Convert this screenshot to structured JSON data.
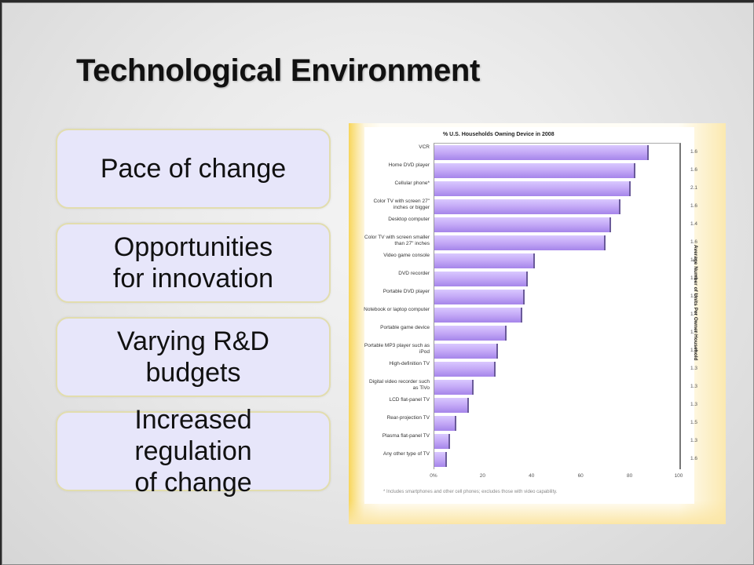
{
  "slide": {
    "title": "Technological Environment",
    "boxes": [
      {
        "label": "Pace of change"
      },
      {
        "label": "Opportunities\nfor innovation"
      },
      {
        "label": "Varying R&D\nbudgets"
      },
      {
        "label": "Increased\nregulation\nof change"
      }
    ]
  },
  "chart": {
    "title": "% U.S. Households Owning Device in 2008",
    "right_axis_label": "Average Number of Units Per Owner Household",
    "footnote": "* Includes smartphones and other cell phones; excludes those with video capability.",
    "x_ticks": [
      "0%",
      "20",
      "40",
      "60",
      "80",
      "100"
    ]
  },
  "chart_data": {
    "type": "bar",
    "orientation": "horizontal",
    "title": "% U.S. Households Owning Device in 2008",
    "xlabel": "",
    "ylabel": "",
    "xlim": [
      0,
      100
    ],
    "x_ticks": [
      "0%",
      "20",
      "40",
      "60",
      "80",
      "100"
    ],
    "grid": false,
    "categories": [
      "VCR",
      "Home DVD player",
      "Cellular phone*",
      "Color TV with screen 27\" inches or bigger",
      "Desktop computer",
      "Color TV with screen smaller than 27\" inches",
      "Video game console",
      "DVD recorder",
      "Portable DVD player",
      "Notebook or laptop computer",
      "Portable game device",
      "Portable MP3 player such as iPod",
      "High-definition TV",
      "Digital video recorder such as TiVo",
      "LCD flat-panel TV",
      "Rear-projection TV",
      "Plasma flat-panel TV",
      "Any other type of TV"
    ],
    "series": [
      {
        "name": "% households owning",
        "values": [
          87.5,
          82,
          80,
          76,
          72,
          70,
          41,
          38,
          37,
          36,
          29.5,
          26,
          25,
          16,
          14,
          9,
          6.5,
          5
        ]
      },
      {
        "name": "Average Number of Units Per Owner Household",
        "values": [
          1.6,
          1.6,
          2.1,
          1.6,
          1.4,
          1.6,
          1.7,
          1.2,
          1.3,
          1.4,
          1.0,
          1.3,
          1.3,
          1.3,
          1.3,
          1.5,
          1.3,
          1.6
        ]
      }
    ]
  }
}
